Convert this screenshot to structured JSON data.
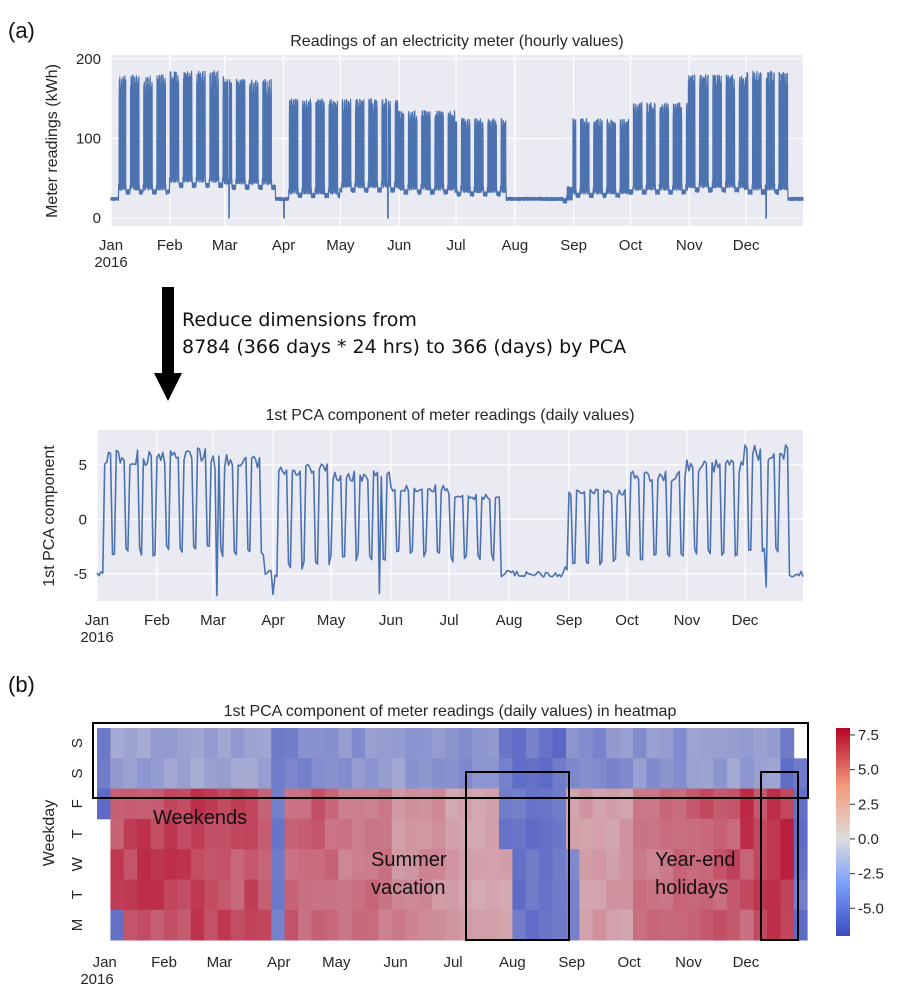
{
  "labels": {
    "panel_a": "(a)",
    "panel_b": "(b)"
  },
  "arrow_note": {
    "line1": "Reduce dimensions from",
    "line2": "8784 (366 days * 24 hrs) to 366 (days) by PCA"
  },
  "colors": {
    "line": "#4c72b0",
    "plot_bg": "#eaeaf2",
    "grid": "#ffffff",
    "cmap_low": "#3b4cc0",
    "cmap_mid": "#dddddd",
    "cmap_high": "#b40426",
    "box": "#000000"
  },
  "chart_data": [
    {
      "id": "hourly",
      "type": "line",
      "title": "Readings of an electricity meter (hourly values)",
      "xlabel": "",
      "ylabel": "Meter readings (kWh)",
      "x_range": [
        "2016-01-01",
        "2016-12-31"
      ],
      "x_ticks": [
        "Jan",
        "Feb",
        "Mar",
        "Apr",
        "May",
        "Jun",
        "Jul",
        "Aug",
        "Sep",
        "Oct",
        "Nov",
        "Dec"
      ],
      "x_tick_year": "2016",
      "ylim": [
        -10,
        205
      ],
      "y_ticks": [
        "0",
        "100",
        "200"
      ],
      "y_tick_values": [
        0,
        100,
        200
      ],
      "grid": true,
      "series": [
        {
          "weekday_peak_kwh_by_month": [
            180,
            185,
            175,
            150,
            150,
            135,
            125,
            40,
            125,
            145,
            180,
            185
          ],
          "base_kwh_by_month": [
            35,
            45,
            42,
            30,
            38,
            35,
            32,
            22,
            30,
            35,
            38,
            35
          ],
          "holiday_kwh": 22,
          "notable_drops_kwh": [
            {
              "date": "2016-03-03",
              "y": 0
            },
            {
              "date": "2016-04-01",
              "y": 0
            },
            {
              "date": "2016-05-26",
              "y": 0
            },
            {
              "date": "2016-12-12",
              "y": 0
            }
          ]
        }
      ]
    },
    {
      "id": "pca",
      "type": "line",
      "title": "1st PCA component of meter readings (daily values)",
      "xlabel": "",
      "ylabel": "1st PCA component",
      "x_range": [
        "2016-01-01",
        "2016-12-31"
      ],
      "x_ticks": [
        "Jan",
        "Feb",
        "Mar",
        "Apr",
        "May",
        "Jun",
        "Jul",
        "Aug",
        "Sep",
        "Oct",
        "Nov",
        "Dec"
      ],
      "x_tick_year": "2016",
      "ylim": [
        -7.5,
        8.2
      ],
      "y_ticks": [
        "5",
        "0",
        "-5"
      ],
      "y_tick_values": [
        5,
        0,
        -5
      ],
      "grid": true,
      "series": [
        {
          "weekday_value_by_month": [
            6.0,
            6.2,
            5.6,
            4.8,
            4.2,
            3.0,
            2.2,
            -5.2,
            2.6,
            4.2,
            5.2,
            6.5
          ],
          "weekend_value_by_month": [
            -3.0,
            -2.8,
            -3.0,
            -4.2,
            -3.5,
            -3.2,
            -3.5,
            -5.2,
            -3.8,
            -3.5,
            -3.0,
            -3.0
          ],
          "holiday_value": -5.0,
          "notable_minima": [
            {
              "date": "2016-03-03",
              "y": -7.0
            },
            {
              "date": "2016-04-01",
              "y": -6.9
            },
            {
              "date": "2016-05-26",
              "y": -6.8
            },
            {
              "date": "2016-12-12",
              "y": -6.2
            }
          ]
        }
      ]
    },
    {
      "id": "heatmap",
      "type": "heatmap",
      "title": "1st PCA component of meter readings (daily values) in heatmap",
      "xlabel": "",
      "ylabel": "Weekday",
      "x_ticks": [
        "Jan",
        "Feb",
        "Mar",
        "Apr",
        "May",
        "Jun",
        "Jul",
        "Aug",
        "Sep",
        "Oct",
        "Nov",
        "Dec"
      ],
      "x_tick_year": "2016",
      "y_ticks_top_to_bottom": [
        "S",
        "S",
        "F",
        "T",
        "W",
        "T",
        "M"
      ],
      "columns": "53 weeks of 2016",
      "rows": "weekdays",
      "value_range": [
        -7.0,
        8.0
      ],
      "colorbar_ticks": [
        "7.5",
        "5.0",
        "2.5",
        "0.0",
        "-2.5",
        "-5.0"
      ],
      "colorbar_tick_values": [
        7.5,
        5.0,
        2.5,
        0.0,
        -2.5,
        -5.0
      ],
      "annotations": {
        "weekends": "Weekends",
        "summer_line1": "Summer",
        "summer_line2": "vacation",
        "yearend_line1": "Year-end",
        "yearend_line2": "holidays"
      },
      "highlighted_weeks": {
        "summer_vacation": [
          30,
          35
        ],
        "year_end": [
          51,
          52
        ]
      }
    }
  ]
}
